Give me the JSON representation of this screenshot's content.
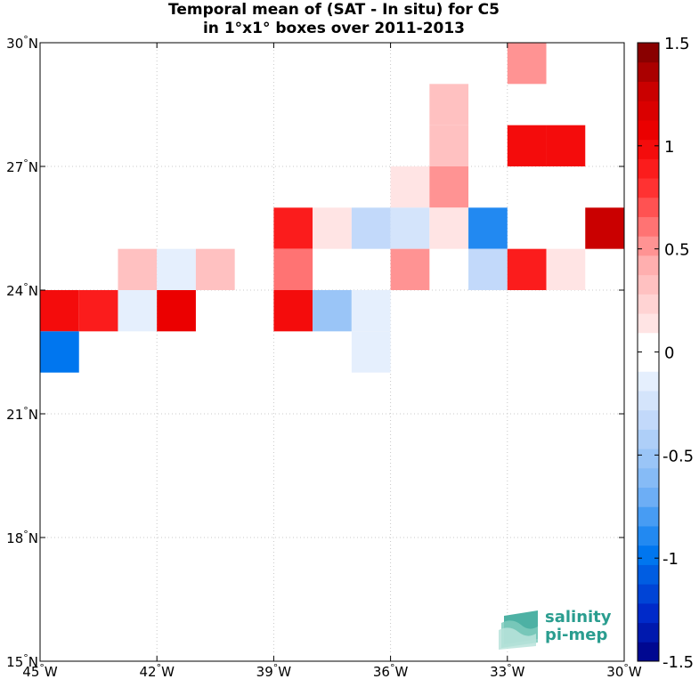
{
  "chart_data": {
    "type": "heatmap",
    "title_line1": "Temporal mean of (SAT - In situ) for C5",
    "title_line2": "in 1°x1° boxes over 2011-2013",
    "xlim": [
      -45,
      -30
    ],
    "ylim": [
      15,
      30
    ],
    "x_ticks": [
      {
        "value": -45,
        "label": "45°W"
      },
      {
        "value": -42,
        "label": "42°W"
      },
      {
        "value": -39,
        "label": "39°W"
      },
      {
        "value": -36,
        "label": "36°W"
      },
      {
        "value": -33,
        "label": "33°W"
      },
      {
        "value": -30,
        "label": "30°W"
      }
    ],
    "y_ticks": [
      {
        "value": 15,
        "label": "15°N"
      },
      {
        "value": 18,
        "label": "18°N"
      },
      {
        "value": 21,
        "label": "21°N"
      },
      {
        "value": 24,
        "label": "24°N"
      },
      {
        "value": 27,
        "label": "27°N"
      },
      {
        "value": 30,
        "label": "30°N"
      }
    ],
    "grid": true,
    "colorbar": {
      "range": [
        -1.5,
        1.5
      ],
      "levels": 32,
      "tick_labels": [
        {
          "value": 1.5,
          "label": "1.5"
        },
        {
          "value": 1,
          "label": "1"
        },
        {
          "value": 0.5,
          "label": "0.5"
        },
        {
          "value": 0,
          "label": "0"
        },
        {
          "value": -0.5,
          "label": "-0.5"
        },
        {
          "value": -1,
          "label": "-1"
        },
        {
          "value": -1.5,
          "label": "-1.5"
        }
      ]
    },
    "cells": [
      {
        "lon": -33,
        "lat": 29,
        "value": 0.55
      },
      {
        "lon": -35,
        "lat": 28,
        "value": 0.3
      },
      {
        "lon": -35,
        "lat": 27,
        "value": 0.3
      },
      {
        "lon": -33,
        "lat": 27,
        "value": 1.0
      },
      {
        "lon": -32,
        "lat": 27,
        "value": 0.95
      },
      {
        "lon": -36,
        "lat": 26,
        "value": 0.15
      },
      {
        "lon": -35,
        "lat": 26,
        "value": 0.55
      },
      {
        "lon": -39,
        "lat": 25,
        "value": 0.85
      },
      {
        "lon": -38,
        "lat": 25,
        "value": 0.15
      },
      {
        "lon": -37,
        "lat": 25,
        "value": -0.35
      },
      {
        "lon": -36,
        "lat": 25,
        "value": -0.25
      },
      {
        "lon": -35,
        "lat": 25,
        "value": 0.15
      },
      {
        "lon": -34,
        "lat": 25,
        "value": -0.9
      },
      {
        "lon": -31,
        "lat": 25,
        "value": 1.3
      },
      {
        "lon": -43,
        "lat": 24,
        "value": 0.3
      },
      {
        "lon": -42,
        "lat": 24,
        "value": -0.15
      },
      {
        "lon": -41,
        "lat": 24,
        "value": 0.3
      },
      {
        "lon": -39,
        "lat": 24,
        "value": 0.65
      },
      {
        "lon": -36,
        "lat": 24,
        "value": 0.55
      },
      {
        "lon": -34,
        "lat": 24,
        "value": -0.35
      },
      {
        "lon": -33,
        "lat": 24,
        "value": 0.9
      },
      {
        "lon": -32,
        "lat": 24,
        "value": 0.15
      },
      {
        "lon": -45,
        "lat": 23,
        "value": 1.0
      },
      {
        "lon": -44,
        "lat": 23,
        "value": 0.85
      },
      {
        "lon": -43,
        "lat": 23,
        "value": -0.15
      },
      {
        "lon": -42,
        "lat": 23,
        "value": 1.05
      },
      {
        "lon": -39,
        "lat": 23,
        "value": 1.0
      },
      {
        "lon": -38,
        "lat": 23,
        "value": -0.5
      },
      {
        "lon": -37,
        "lat": 23,
        "value": -0.15
      },
      {
        "lon": -45,
        "lat": 22,
        "value": -1.0
      },
      {
        "lon": -37,
        "lat": 22,
        "value": -0.15
      }
    ]
  },
  "logo": {
    "line1": "salinity",
    "line2": "pi-mep"
  }
}
